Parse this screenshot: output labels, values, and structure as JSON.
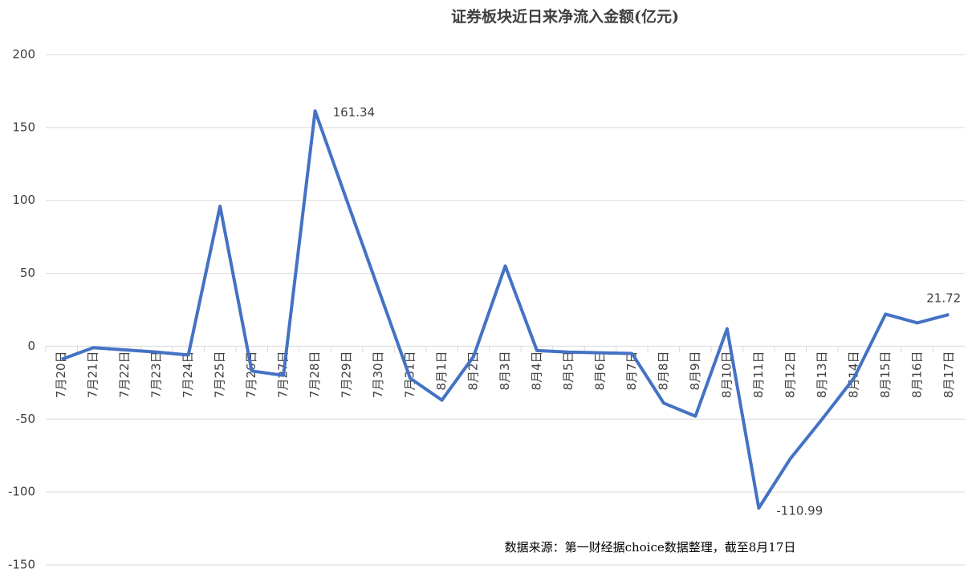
{
  "chart_data": {
    "type": "line",
    "title": "证券板块近日来净流入金额(亿元)",
    "note": "数据来源：第一财经据choice数据整理，截至8月17日",
    "categories": [
      "7月20日",
      "7月21日",
      "7月22日",
      "7月23日",
      "7月24日",
      "7月25日",
      "7月26日",
      "7月27日",
      "7月28日",
      "7月29日",
      "7月30日",
      "7月31日",
      "8月1日",
      "8月2日",
      "8月3日",
      "8月4日",
      "8月5日",
      "8月6日",
      "8月7日",
      "8月8日",
      "8月9日",
      "8月10日",
      "8月11日",
      "8月12日",
      "8月13日",
      "8月14日",
      "8月15日",
      "8月16日",
      "8月17日"
    ],
    "series": [
      {
        "name": "净流入金额",
        "color": "#4472c4",
        "values": [
          -9,
          -1,
          -2.5,
          -4,
          -6,
          96,
          -17,
          -20,
          161.34,
          100,
          39,
          -22,
          -37,
          -7,
          55,
          -3,
          -4,
          -4.5,
          -5,
          -39,
          -48,
          12,
          -110.99,
          -77,
          -50,
          -22,
          22,
          16,
          21.72
        ],
        "value_labels": [
          null,
          null,
          null,
          null,
          null,
          null,
          null,
          null,
          "161.34",
          null,
          null,
          null,
          null,
          null,
          null,
          null,
          null,
          null,
          null,
          null,
          null,
          null,
          "-110.99",
          null,
          null,
          null,
          null,
          null,
          "21.72"
        ]
      }
    ],
    "ylim": [
      -150,
      200
    ],
    "yticks": [
      -150,
      -100,
      -50,
      0,
      50,
      100,
      150,
      200
    ],
    "grid": true
  }
}
